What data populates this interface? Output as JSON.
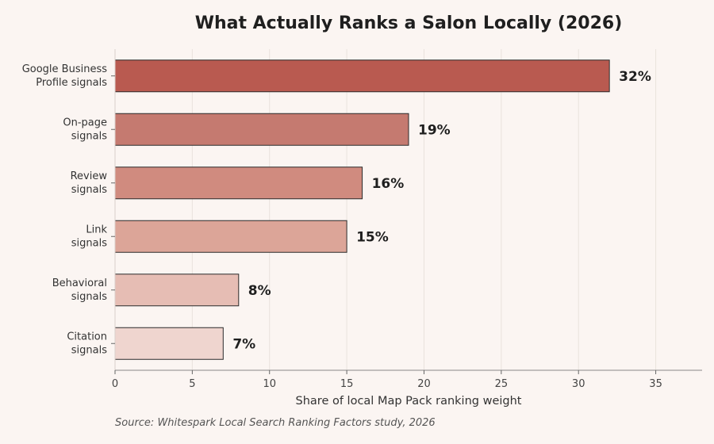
{
  "chart_data": {
    "type": "bar",
    "orientation": "horizontal",
    "title": "What Actually Ranks a Salon Locally (2026)",
    "categories": [
      [
        "Google Business",
        "Profile signals"
      ],
      [
        "On-page",
        "signals"
      ],
      [
        "Review",
        "signals"
      ],
      [
        "Link",
        "signals"
      ],
      [
        "Behavioral",
        "signals"
      ],
      [
        "Citation",
        "signals"
      ]
    ],
    "values": [
      32,
      19,
      16,
      15,
      8,
      7
    ],
    "value_labels": [
      "32%",
      "19%",
      "16%",
      "15%",
      "8%",
      "7%"
    ],
    "bar_colors": [
      "#b95a50",
      "#c57a70",
      "#d08b7f",
      "#dca598",
      "#e6bdb4",
      "#efd5cf"
    ],
    "xlabel": "Share of local Map Pack ranking weight",
    "ylabel": "",
    "xlim": [
      0,
      38
    ],
    "xticks": [
      0,
      5,
      10,
      15,
      20,
      25,
      30,
      35
    ],
    "grid": "vertical",
    "source": "Source: Whitespark Local Search Ranking Factors study, 2026"
  }
}
